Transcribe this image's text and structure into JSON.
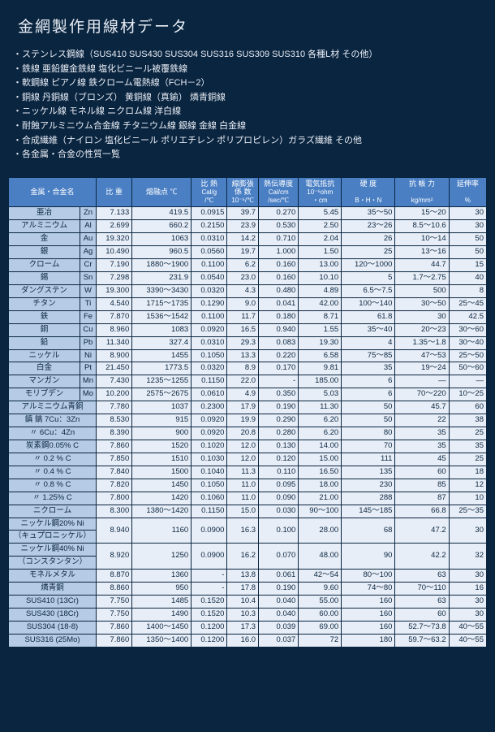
{
  "title": "金網製作用線材データ",
  "bullets": [
    "ステンレス鋼線（SUS410 SUS430 SUS304 SUS316 SUS309 SUS310 各種L材 その他）",
    "鉄線 亜鉛鍍金鉄線 塩化ビニール被覆鉄線",
    "軟鋼線 ピアノ線 鉄クローム電熱線（FCH－2）",
    "銅線 丹銅線（ブロンズ） 黄銅線（真鍮） 燐青銅線",
    "ニッケル線 モネル線 ニクロム線 洋白線",
    "耐蝕アルミニウム合金線 チタニウム線 銀線 金線 白金線",
    "合成繊維（ナイロン 塩化ビニール ポリエチレン ポリプロピレン）ガラズ繊維 その他",
    "各金属・合金の性質一覧"
  ],
  "headers": {
    "c1": "金属・合金名",
    "c2": "比 重",
    "c3": "熔融点\n℃",
    "c4a": "比 熱",
    "c4b": "Cal/g",
    "c4c": "/℃",
    "c5a": "線膨張",
    "c5b": "係 数",
    "c5c": "10⁻⁶/℃",
    "c6a": "熱伝導度",
    "c6b": "Cal/cm",
    "c6c": "/sec/℃",
    "c7a": "電気抵抗",
    "c7b": "10⁻⁶ohm",
    "c7c": "・cm",
    "c8a": "硬  度",
    "c8b": "B・H・N",
    "c9a": "抗 帳 力",
    "c9b": "kg/mm²",
    "c10a": "延伸率",
    "c10b": "%"
  },
  "rows": [
    {
      "n": "亜冶",
      "s": "Zn",
      "d": [
        "7.133",
        "419.5",
        "0.0915",
        "39.7",
        "0.270",
        "5.45",
        "35～50",
        "15～20",
        "30"
      ]
    },
    {
      "n": "アルミニウム",
      "s": "Al",
      "d": [
        "2.699",
        "660.2",
        "0.2150",
        "23.9",
        "0.530",
        "2.50",
        "23～26",
        "8.5～10.6",
        "30"
      ]
    },
    {
      "n": "金",
      "s": "Au",
      "d": [
        "19.320",
        "1063",
        "0.0310",
        "14.2",
        "0.710",
        "2.04",
        "26",
        "10～14",
        "50"
      ]
    },
    {
      "n": "銀",
      "s": "Ag",
      "d": [
        "10.490",
        "960.5",
        "0.0560",
        "19.7",
        "1.000",
        "1.50",
        "25",
        "13～16",
        "50"
      ]
    },
    {
      "n": "クローム",
      "s": "Cr",
      "d": [
        "7.190",
        "1880～1900",
        "0.1100",
        "6.2",
        "0.160",
        "13.00",
        "120～1000",
        "44.7",
        "15"
      ]
    },
    {
      "n": "錫",
      "s": "Sn",
      "d": [
        "7.298",
        "231.9",
        "0.0540",
        "23.0",
        "0.160",
        "10.10",
        "5",
        "1.7～2.75",
        "40"
      ]
    },
    {
      "n": "ダングステン",
      "s": "W",
      "d": [
        "19.300",
        "3390～3430",
        "0.0320",
        "4.3",
        "0.480",
        "4.89",
        "6.5～7.5",
        "500",
        "8"
      ]
    },
    {
      "n": "チタン",
      "s": "Ti",
      "d": [
        "4.540",
        "1715～1735",
        "0.1290",
        "9.0",
        "0.041",
        "42.00",
        "100～140",
        "30～50",
        "25～45"
      ]
    },
    {
      "n": "鉄",
      "s": "Fe",
      "d": [
        "7.870",
        "1536～1542",
        "0.1100",
        "11.7",
        "0.180",
        "8.71",
        "61.8",
        "30",
        "42.5"
      ]
    },
    {
      "n": "銅",
      "s": "Cu",
      "d": [
        "8.960",
        "1083",
        "0.0920",
        "16.5",
        "0.940",
        "1.55",
        "35～40",
        "20～23",
        "30～60"
      ]
    },
    {
      "n": "鉛",
      "s": "Pb",
      "d": [
        "11.340",
        "327.4",
        "0.0310",
        "29.3",
        "0.083",
        "19.30",
        "4",
        "1.35～1.8",
        "30～40"
      ]
    },
    {
      "n": "ニッケル",
      "s": "Ni",
      "d": [
        "8.900",
        "1455",
        "0.1050",
        "13.3",
        "0.220",
        "6.58",
        "75～85",
        "47～53",
        "25～50"
      ]
    },
    {
      "n": "白金",
      "s": "Pt",
      "d": [
        "21.450",
        "1773.5",
        "0.0320",
        "8.9",
        "0.170",
        "9.81",
        "35",
        "19～24",
        "50～60"
      ]
    },
    {
      "n": "マンガン",
      "s": "Mn",
      "d": [
        "7.430",
        "1235～1255",
        "0.1150",
        "22.0",
        "-",
        "185.00",
        "6",
        "―",
        "―"
      ]
    },
    {
      "n": "モリブデン",
      "s": "Mo",
      "d": [
        "10.200",
        "2575～2675",
        "0.0610",
        "4.9",
        "0.350",
        "5.03",
        "6",
        "70～220",
        "10～25"
      ]
    },
    {
      "n": "アルミニウム青銅",
      "s": "",
      "d": [
        "7.780",
        "1037",
        "0.2300",
        "17.9",
        "0.190",
        "11.30",
        "50",
        "45.7",
        "60"
      ]
    },
    {
      "n": "鎮 鎬 7Cu：3Zn",
      "s": "",
      "d": [
        "8.530",
        "915",
        "0.0920",
        "19.9",
        "0.290",
        "6.20",
        "50",
        "22",
        "38"
      ]
    },
    {
      "n": "〃 6Cu：4Zn",
      "s": "",
      "d": [
        "8.390",
        "900",
        "0.0920",
        "20.8",
        "0.280",
        "6.20",
        "80",
        "35",
        "25"
      ]
    },
    {
      "n": "炭素鋼0.05% C",
      "s": "",
      "d": [
        "7.860",
        "1520",
        "0.1020",
        "12.0",
        "0.130",
        "14.00",
        "70",
        "35",
        "35"
      ]
    },
    {
      "n": "〃 0.2 % C",
      "s": "",
      "d": [
        "7.850",
        "1510",
        "0.1030",
        "12.0",
        "0.120",
        "15.00",
        "111",
        "45",
        "25"
      ]
    },
    {
      "n": "〃 0.4 % C",
      "s": "",
      "d": [
        "7.840",
        "1500",
        "0.1040",
        "11.3",
        "0.110",
        "16.50",
        "135",
        "60",
        "18"
      ]
    },
    {
      "n": "〃 0.8 % C",
      "s": "",
      "d": [
        "7.820",
        "1450",
        "0.1050",
        "11.0",
        "0.095",
        "18.00",
        "230",
        "85",
        "12"
      ]
    },
    {
      "n": "〃 1.25% C",
      "s": "",
      "d": [
        "7.800",
        "1420",
        "0.1060",
        "11.0",
        "0.090",
        "21.00",
        "288",
        "87",
        "10"
      ]
    },
    {
      "n": "ニクローム",
      "s": "",
      "d": [
        "8.300",
        "1380～1420",
        "0.1150",
        "15.0",
        "0.030",
        "90～100",
        "145～185",
        "66.8",
        "25～35"
      ]
    },
    {
      "n": "ニッケル鋼20% Ni\n（キュプロニッケル）",
      "s": "",
      "d": [
        "8.940",
        "1160",
        "0.0900",
        "16.3",
        "0.100",
        "28.00",
        "68",
        "47.2",
        "30"
      ]
    },
    {
      "n": "ニッケル鋼40% Ni\n（コンスタンタン）",
      "s": "",
      "d": [
        "8.920",
        "1250",
        "0.0900",
        "16.2",
        "0.070",
        "48.00",
        "90",
        "42.2",
        "32"
      ]
    },
    {
      "n": "モネルメタル",
      "s": "",
      "d": [
        "8.870",
        "1360",
        "-",
        "13.8",
        "0.061",
        "42～54",
        "80～100",
        "63",
        "30"
      ]
    },
    {
      "n": "燐青銅",
      "s": "",
      "d": [
        "8.860",
        "950",
        "-",
        "17.8",
        "0.190",
        "9.60",
        "74～80",
        "70～110",
        "16"
      ]
    },
    {
      "n": "SUS410 (13Cr)",
      "s": "",
      "d": [
        "7.750",
        "1485",
        "0.1520",
        "10.4",
        "0.040",
        "55.00",
        "160",
        "63",
        "30"
      ]
    },
    {
      "n": "SUS430 (18Cr)",
      "s": "",
      "d": [
        "7.750",
        "1490",
        "0.1520",
        "10.3",
        "0.040",
        "60.00",
        "160",
        "60",
        "30"
      ]
    },
    {
      "n": "SUS304 (18-8)",
      "s": "",
      "d": [
        "7.860",
        "1400～1450",
        "0.1200",
        "17.3",
        "0.039",
        "69.00",
        "160",
        "52.7～73.8",
        "40～55"
      ]
    },
    {
      "n": "SUS316 (25Mo)",
      "s": "",
      "d": [
        "7.860",
        "1350～1400",
        "0.1200",
        "16.0",
        "0.037",
        "72",
        "180",
        "59.7～63.2",
        "40～55"
      ]
    }
  ]
}
